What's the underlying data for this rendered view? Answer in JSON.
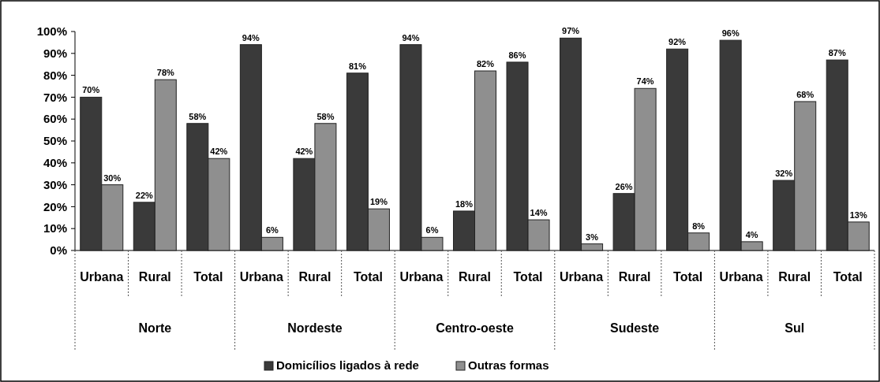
{
  "chart_data": {
    "type": "bar",
    "categories": [
      "Urbana",
      "Rural",
      "Total",
      "Urbana",
      "Rural",
      "Total",
      "Urbana",
      "Rural",
      "Total",
      "Urbana",
      "Rural",
      "Total",
      "Urbana",
      "Rural",
      "Total"
    ],
    "series": [
      {
        "name": "Domicílios ligados à rede",
        "color": "#3a3a3a",
        "values": [
          70,
          22,
          58,
          94,
          42,
          81,
          94,
          18,
          86,
          97,
          26,
          92,
          96,
          32,
          87
        ],
        "value_labels": [
          "70%",
          "22%",
          "58%",
          "94%",
          "42%",
          "81%",
          "94%",
          "18%",
          "86%",
          "97%",
          "26%",
          "92%",
          "96%",
          "32%",
          "87%"
        ]
      },
      {
        "name": "Outras formas",
        "color": "#8f8f8f",
        "values": [
          30,
          78,
          42,
          6,
          58,
          19,
          6,
          82,
          14,
          3,
          74,
          8,
          4,
          68,
          13
        ],
        "value_labels": [
          "30%",
          "78%",
          "42%",
          "6%",
          "58%",
          "19%",
          "6%",
          "82%",
          "14%",
          "3%",
          "74%",
          "8%",
          "4%",
          "68%",
          "13%"
        ]
      }
    ],
    "annotations": [
      "Norte",
      "Nordeste",
      "Centro-oeste",
      "Sudeste",
      "Sul"
    ],
    "ylim": [
      0,
      100
    ],
    "yticks": [
      {
        "value": 0,
        "label": "0%"
      },
      {
        "value": 10,
        "label": "10%"
      },
      {
        "value": 20,
        "label": "20%"
      },
      {
        "value": 30,
        "label": "30%"
      },
      {
        "value": 40,
        "label": "40%"
      },
      {
        "value": 50,
        "label": "50%"
      },
      {
        "value": 60,
        "label": "60%"
      },
      {
        "value": 70,
        "label": "70%"
      },
      {
        "value": 80,
        "label": "80%"
      },
      {
        "value": 90,
        "label": "90%"
      },
      {
        "value": 100,
        "label": "100%"
      }
    ],
    "legend": "bottom"
  }
}
